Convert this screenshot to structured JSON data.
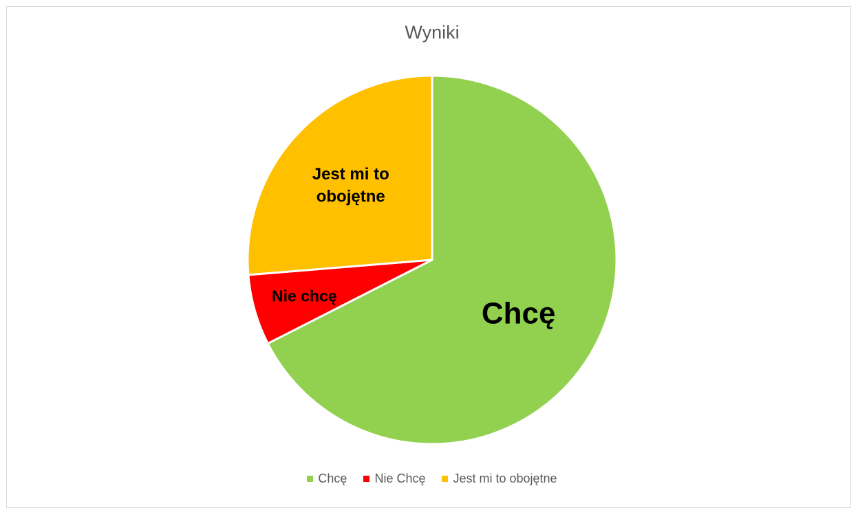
{
  "chart_data": {
    "type": "pie",
    "title": "Wyniki",
    "categories": [
      "Chcę",
      "Nie Chcę",
      "Jest mi to obojętne"
    ],
    "values": [
      67.5,
      6.2,
      26.3
    ],
    "colors": [
      "#92d050",
      "#ff0000",
      "#ffc000"
    ],
    "data_labels": [
      "Chcę",
      "Nie chcę",
      "Jest mi to obojętne"
    ],
    "legend": "bottom"
  }
}
